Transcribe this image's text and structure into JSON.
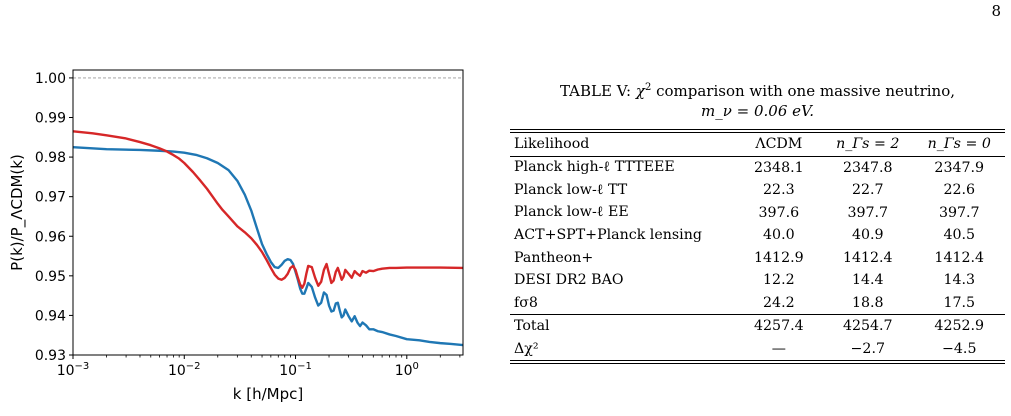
{
  "page_number": "8",
  "figure": {
    "ylabel": "P(k)/P_ΛCDM(k)",
    "xlabel": "k [h/Mpc]",
    "chart_data": {
      "type": "line",
      "x_scale": "log",
      "xlim": [
        0.001,
        3.2
      ],
      "ylim": [
        0.93,
        1.002
      ],
      "grid": false,
      "reference_line": {
        "y": 1.0,
        "style": "dashed",
        "color": "#999999"
      },
      "x_ticks": [
        {
          "value": 0.001,
          "base": "10",
          "exp": "−3"
        },
        {
          "value": 0.01,
          "base": "10",
          "exp": "−2"
        },
        {
          "value": 0.1,
          "base": "10",
          "exp": "−1"
        },
        {
          "value": 1,
          "base": "10",
          "exp": "0"
        }
      ],
      "y_ticks": [
        "0.93",
        "0.94",
        "0.95",
        "0.96",
        "0.97",
        "0.98",
        "0.99",
        "1.00"
      ],
      "series": [
        {
          "color": "#1f77b4",
          "x": [
            0.001,
            0.002,
            0.004,
            0.006,
            0.008,
            0.01,
            0.013,
            0.016,
            0.02,
            0.025,
            0.03,
            0.035,
            0.04,
            0.045,
            0.05,
            0.055,
            0.06,
            0.065,
            0.07,
            0.075,
            0.08,
            0.085,
            0.09,
            0.095,
            0.1,
            0.105,
            0.11,
            0.115,
            0.12,
            0.125,
            0.13,
            0.14,
            0.15,
            0.16,
            0.17,
            0.18,
            0.19,
            0.2,
            0.21,
            0.22,
            0.23,
            0.24,
            0.25,
            0.26,
            0.27,
            0.28,
            0.3,
            0.32,
            0.34,
            0.36,
            0.38,
            0.4,
            0.43,
            0.46,
            0.5,
            0.55,
            0.6,
            0.7,
            0.8,
            1.0,
            1.3,
            1.6,
            2.0,
            2.5,
            3.2
          ],
          "y": [
            0.9825,
            0.982,
            0.9818,
            0.9816,
            0.9814,
            0.9811,
            0.9805,
            0.9797,
            0.9785,
            0.9767,
            0.974,
            0.9705,
            0.9665,
            0.962,
            0.958,
            0.9555,
            0.9535,
            0.9522,
            0.952,
            0.9528,
            0.9538,
            0.9542,
            0.954,
            0.953,
            0.951,
            0.949,
            0.9468,
            0.9455,
            0.9455,
            0.9468,
            0.9482,
            0.9472,
            0.9445,
            0.9425,
            0.9432,
            0.9458,
            0.9452,
            0.9425,
            0.941,
            0.9412,
            0.943,
            0.9432,
            0.9412,
            0.9395,
            0.94,
            0.9415,
            0.9398,
            0.9385,
            0.9398,
            0.9382,
            0.9373,
            0.9382,
            0.9375,
            0.9365,
            0.9365,
            0.936,
            0.9358,
            0.9352,
            0.9348,
            0.934,
            0.9337,
            0.9333,
            0.933,
            0.9328,
            0.9325
          ]
        },
        {
          "color": "#d62728",
          "x": [
            0.001,
            0.0015,
            0.002,
            0.003,
            0.004,
            0.005,
            0.006,
            0.007,
            0.008,
            0.009,
            0.01,
            0.012,
            0.014,
            0.016,
            0.018,
            0.02,
            0.022,
            0.025,
            0.03,
            0.035,
            0.04,
            0.045,
            0.05,
            0.055,
            0.06,
            0.065,
            0.07,
            0.075,
            0.08,
            0.085,
            0.09,
            0.095,
            0.1,
            0.105,
            0.11,
            0.115,
            0.12,
            0.125,
            0.13,
            0.14,
            0.15,
            0.16,
            0.17,
            0.18,
            0.19,
            0.2,
            0.21,
            0.22,
            0.23,
            0.24,
            0.25,
            0.26,
            0.27,
            0.28,
            0.3,
            0.32,
            0.34,
            0.36,
            0.38,
            0.4,
            0.43,
            0.46,
            0.5,
            0.55,
            0.6,
            0.7,
            0.8,
            1.0,
            1.5,
            2.0,
            3.2
          ],
          "y": [
            0.9865,
            0.986,
            0.9855,
            0.9847,
            0.9838,
            0.983,
            0.9822,
            0.9814,
            0.9805,
            0.9796,
            0.9785,
            0.9762,
            0.974,
            0.972,
            0.97,
            0.9682,
            0.9667,
            0.965,
            0.9625,
            0.961,
            0.9595,
            0.9578,
            0.956,
            0.954,
            0.952,
            0.9503,
            0.9493,
            0.949,
            0.9495,
            0.9505,
            0.952,
            0.9525,
            0.9515,
            0.9495,
            0.9478,
            0.947,
            0.948,
            0.9505,
            0.9525,
            0.9522,
            0.9495,
            0.9475,
            0.9485,
            0.9515,
            0.953,
            0.9505,
            0.9482,
            0.9488,
            0.951,
            0.952,
            0.9505,
            0.949,
            0.9498,
            0.9515,
            0.9505,
            0.9495,
            0.9512,
            0.9505,
            0.95,
            0.9512,
            0.9508,
            0.9513,
            0.9512,
            0.9516,
            0.9518,
            0.952,
            0.952,
            0.9521,
            0.9521,
            0.9521,
            0.952
          ]
        }
      ]
    }
  },
  "table": {
    "caption": {
      "line1_prefix": "TABLE V: ",
      "chi": "χ",
      "chi_sup": "2",
      "line1_suffix": " comparison with one massive neutrino,",
      "line2": "m_ν = 0.06 eV."
    },
    "headers": [
      "Likelihood",
      "ΛCDM",
      "n_Γs = 2",
      "n_Γs = 0"
    ],
    "rows": [
      [
        "Planck high-ℓ TTTEEE",
        "2348.1",
        "2347.8",
        "2347.9"
      ],
      [
        "Planck low-ℓ TT",
        "22.3",
        "22.7",
        "22.6"
      ],
      [
        "Planck low-ℓ EE",
        "397.6",
        "397.7",
        "397.7"
      ],
      [
        "ACT+SPT+Planck lensing",
        "40.0",
        "40.9",
        "40.5"
      ],
      [
        "Pantheon+",
        "1412.9",
        "1412.4",
        "1412.4"
      ],
      [
        "DESI DR2 BAO",
        "12.2",
        "14.4",
        "14.3"
      ],
      [
        "fσ8",
        "24.2",
        "18.8",
        "17.5"
      ]
    ],
    "totals": [
      [
        "Total",
        "4257.4",
        "4254.7",
        "4252.9"
      ],
      [
        "Δχ²",
        "—",
        "−2.7",
        "−4.5"
      ]
    ]
  }
}
